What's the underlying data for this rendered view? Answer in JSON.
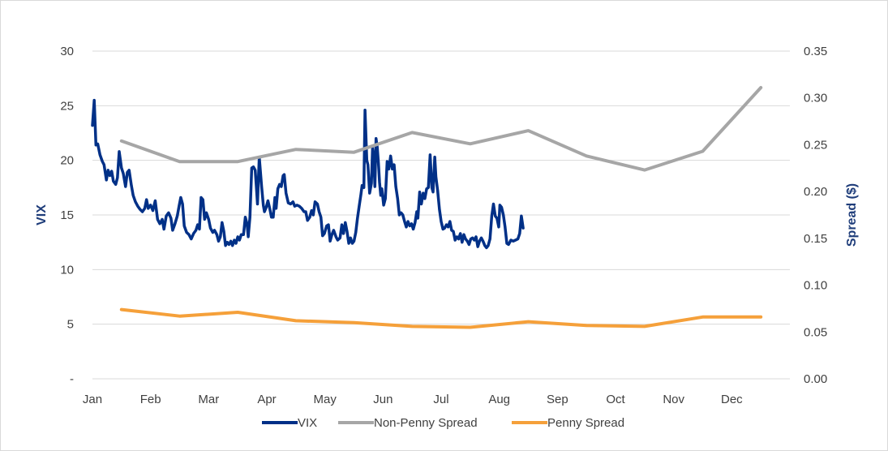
{
  "chart_data": {
    "type": "line",
    "title": "",
    "months": [
      "Jan",
      "Feb",
      "Mar",
      "Apr",
      "May",
      "Jun",
      "Jul",
      "Aug",
      "Sep",
      "Oct",
      "Nov",
      "Dec"
    ],
    "ylabel_left": "VIX",
    "ylabel_right": "Spread ($)",
    "left_axis": {
      "min": 0,
      "max": 30,
      "ticks": [
        0,
        5,
        10,
        15,
        20,
        25,
        30
      ],
      "tick_labels": [
        "-",
        "5",
        "10",
        "15",
        "20",
        "25",
        "30"
      ]
    },
    "right_axis": {
      "min": 0,
      "max": 0.35,
      "ticks": [
        0,
        0.05,
        0.1,
        0.15,
        0.2,
        0.25,
        0.3,
        0.35
      ],
      "tick_labels": [
        "0.00",
        "0.05",
        "0.10",
        "0.15",
        "0.20",
        "0.25",
        "0.30",
        "0.35"
      ]
    },
    "grid": "horizontal",
    "legend_position": "bottom",
    "series": [
      {
        "name": "VIX",
        "axis": "left",
        "color": "#003087",
        "points": [
          [
            0.0,
            23.2
          ],
          [
            0.03,
            25.5
          ],
          [
            0.06,
            21.4
          ],
          [
            0.09,
            21.5
          ],
          [
            0.13,
            20.5
          ],
          [
            0.17,
            19.9
          ],
          [
            0.2,
            19.6
          ],
          [
            0.24,
            18.2
          ],
          [
            0.27,
            19.1
          ],
          [
            0.3,
            18.6
          ],
          [
            0.33,
            19.0
          ],
          [
            0.36,
            18.1
          ],
          [
            0.4,
            17.8
          ],
          [
            0.43,
            18.4
          ],
          [
            0.46,
            20.8
          ],
          [
            0.5,
            19.3
          ],
          [
            0.53,
            18.8
          ],
          [
            0.57,
            17.6
          ],
          [
            0.6,
            18.9
          ],
          [
            0.63,
            19.1
          ],
          [
            0.67,
            17.7
          ],
          [
            0.7,
            16.8
          ],
          [
            0.74,
            16.2
          ],
          [
            0.78,
            15.8
          ],
          [
            0.82,
            15.5
          ],
          [
            0.86,
            15.3
          ],
          [
            0.9,
            15.6
          ],
          [
            0.93,
            16.4
          ],
          [
            0.96,
            15.6
          ],
          [
            1.0,
            15.9
          ],
          [
            1.04,
            15.4
          ],
          [
            1.08,
            16.3
          ],
          [
            1.12,
            14.6
          ],
          [
            1.16,
            14.2
          ],
          [
            1.2,
            14.6
          ],
          [
            1.23,
            13.7
          ],
          [
            1.27,
            14.9
          ],
          [
            1.31,
            15.2
          ],
          [
            1.35,
            14.7
          ],
          [
            1.38,
            13.6
          ],
          [
            1.42,
            14.2
          ],
          [
            1.46,
            14.9
          ],
          [
            1.49,
            15.8
          ],
          [
            1.52,
            16.6
          ],
          [
            1.55,
            16.0
          ],
          [
            1.58,
            14.0
          ],
          [
            1.62,
            13.4
          ],
          [
            1.66,
            13.2
          ],
          [
            1.7,
            12.8
          ],
          [
            1.74,
            13.3
          ],
          [
            1.78,
            13.6
          ],
          [
            1.81,
            14.1
          ],
          [
            1.84,
            13.7
          ],
          [
            1.87,
            16.6
          ],
          [
            1.9,
            16.4
          ],
          [
            1.93,
            14.6
          ],
          [
            1.96,
            15.2
          ],
          [
            2.0,
            14.6
          ],
          [
            2.03,
            13.8
          ],
          [
            2.07,
            13.4
          ],
          [
            2.1,
            13.6
          ],
          [
            2.14,
            13.2
          ],
          [
            2.17,
            12.6
          ],
          [
            2.2,
            13.0
          ],
          [
            2.23,
            14.3
          ],
          [
            2.26,
            13.5
          ],
          [
            2.29,
            12.2
          ],
          [
            2.32,
            12.5
          ],
          [
            2.35,
            12.3
          ],
          [
            2.38,
            12.6
          ],
          [
            2.41,
            12.2
          ],
          [
            2.44,
            12.7
          ],
          [
            2.47,
            12.4
          ],
          [
            2.5,
            13.0
          ],
          [
            2.53,
            12.7
          ],
          [
            2.56,
            13.2
          ],
          [
            2.6,
            13.2
          ],
          [
            2.63,
            14.8
          ],
          [
            2.66,
            14.2
          ],
          [
            2.68,
            13.0
          ],
          [
            2.71,
            14.8
          ],
          [
            2.74,
            19.3
          ],
          [
            2.77,
            19.4
          ],
          [
            2.8,
            19.1
          ],
          [
            2.82,
            17.6
          ],
          [
            2.84,
            16.0
          ],
          [
            2.87,
            20.3
          ],
          [
            2.89,
            19.0
          ],
          [
            2.91,
            17.6
          ],
          [
            2.94,
            15.9
          ],
          [
            2.96,
            15.3
          ],
          [
            2.99,
            15.7
          ],
          [
            3.02,
            16.3
          ],
          [
            3.05,
            15.6
          ],
          [
            3.08,
            14.8
          ],
          [
            3.11,
            14.8
          ],
          [
            3.14,
            16.6
          ],
          [
            3.16,
            15.6
          ],
          [
            3.19,
            17.4
          ],
          [
            3.22,
            17.8
          ],
          [
            3.25,
            17.6
          ],
          [
            3.28,
            18.6
          ],
          [
            3.3,
            18.7
          ],
          [
            3.33,
            17.0
          ],
          [
            3.37,
            16.1
          ],
          [
            3.41,
            16.0
          ],
          [
            3.45,
            16.2
          ],
          [
            3.48,
            15.8
          ],
          [
            3.52,
            15.9
          ],
          [
            3.56,
            15.8
          ],
          [
            3.6,
            15.6
          ],
          [
            3.64,
            15.3
          ],
          [
            3.67,
            15.3
          ],
          [
            3.7,
            14.5
          ],
          [
            3.74,
            14.8
          ],
          [
            3.77,
            15.4
          ],
          [
            3.8,
            15.0
          ],
          [
            3.83,
            16.2
          ],
          [
            3.87,
            16.0
          ],
          [
            3.9,
            15.3
          ],
          [
            3.93,
            14.8
          ],
          [
            3.96,
            13.1
          ],
          [
            3.99,
            13.3
          ],
          [
            4.03,
            14.0
          ],
          [
            4.06,
            14.1
          ],
          [
            4.09,
            12.6
          ],
          [
            4.12,
            13.2
          ],
          [
            4.15,
            13.6
          ],
          [
            4.19,
            13.0
          ],
          [
            4.22,
            12.7
          ],
          [
            4.26,
            12.9
          ],
          [
            4.29,
            14.1
          ],
          [
            4.32,
            13.3
          ],
          [
            4.35,
            14.3
          ],
          [
            4.38,
            13.5
          ],
          [
            4.41,
            12.4
          ],
          [
            4.44,
            12.9
          ],
          [
            4.47,
            12.4
          ],
          [
            4.5,
            12.6
          ],
          [
            4.53,
            13.4
          ],
          [
            4.56,
            14.7
          ],
          [
            4.59,
            15.8
          ],
          [
            4.62,
            16.9
          ],
          [
            4.64,
            17.7
          ],
          [
            4.67,
            17.5
          ],
          [
            4.69,
            24.6
          ],
          [
            4.72,
            20.0
          ],
          [
            4.74,
            19.6
          ],
          [
            4.77,
            17.0
          ],
          [
            4.8,
            17.9
          ],
          [
            4.82,
            21.1
          ],
          [
            4.84,
            20.2
          ],
          [
            4.86,
            17.6
          ],
          [
            4.88,
            22.0
          ],
          [
            4.9,
            21.2
          ],
          [
            4.92,
            19.8
          ],
          [
            4.94,
            18.0
          ],
          [
            4.96,
            16.8
          ],
          [
            4.98,
            17.4
          ],
          [
            5.01,
            15.9
          ],
          [
            5.04,
            16.5
          ],
          [
            5.07,
            19.9
          ],
          [
            5.1,
            19.2
          ],
          [
            5.13,
            20.4
          ],
          [
            5.16,
            19.2
          ],
          [
            5.19,
            19.6
          ],
          [
            5.22,
            17.6
          ],
          [
            5.25,
            16.5
          ],
          [
            5.28,
            15.0
          ],
          [
            5.31,
            15.2
          ],
          [
            5.34,
            15.0
          ],
          [
            5.37,
            14.4
          ],
          [
            5.4,
            13.9
          ],
          [
            5.43,
            14.4
          ],
          [
            5.46,
            14.0
          ],
          [
            5.49,
            14.2
          ],
          [
            5.52,
            13.7
          ],
          [
            5.55,
            14.3
          ],
          [
            5.58,
            15.3
          ],
          [
            5.6,
            14.7
          ],
          [
            5.63,
            17.1
          ],
          [
            5.66,
            16.0
          ],
          [
            5.69,
            17.0
          ],
          [
            5.72,
            16.5
          ],
          [
            5.75,
            17.4
          ],
          [
            5.78,
            17.5
          ],
          [
            5.81,
            20.5
          ],
          [
            5.84,
            17.5
          ],
          [
            5.86,
            17.1
          ],
          [
            5.89,
            20.3
          ],
          [
            5.91,
            18.5
          ],
          [
            5.94,
            17.2
          ],
          [
            5.97,
            15.5
          ],
          [
            6.0,
            14.4
          ],
          [
            6.03,
            13.7
          ],
          [
            6.06,
            13.8
          ],
          [
            6.09,
            14.1
          ],
          [
            6.12,
            13.9
          ],
          [
            6.15,
            14.4
          ],
          [
            6.18,
            13.6
          ],
          [
            6.21,
            13.5
          ],
          [
            6.24,
            12.7
          ],
          [
            6.27,
            13.0
          ],
          [
            6.3,
            12.8
          ],
          [
            6.33,
            13.3
          ],
          [
            6.36,
            12.5
          ],
          [
            6.39,
            13.2
          ],
          [
            6.42,
            12.8
          ],
          [
            6.45,
            12.6
          ],
          [
            6.48,
            12.3
          ],
          [
            6.51,
            12.8
          ],
          [
            6.54,
            12.9
          ],
          [
            6.57,
            12.7
          ],
          [
            6.6,
            13.0
          ],
          [
            6.63,
            12.1
          ],
          [
            6.66,
            12.6
          ],
          [
            6.69,
            12.9
          ],
          [
            6.72,
            12.6
          ],
          [
            6.75,
            12.2
          ],
          [
            6.78,
            12.0
          ],
          [
            6.81,
            12.2
          ],
          [
            6.84,
            12.8
          ],
          [
            6.87,
            14.9
          ],
          [
            6.9,
            16.0
          ],
          [
            6.93,
            14.9
          ],
          [
            6.96,
            14.7
          ],
          [
            6.99,
            13.9
          ],
          [
            7.01,
            15.9
          ],
          [
            7.04,
            15.7
          ],
          [
            7.07,
            15.0
          ],
          [
            7.1,
            13.9
          ],
          [
            7.13,
            12.4
          ],
          [
            7.16,
            12.3
          ],
          [
            7.2,
            12.7
          ],
          [
            7.24,
            12.6
          ],
          [
            7.28,
            12.7
          ],
          [
            7.32,
            12.8
          ],
          [
            7.35,
            13.3
          ],
          [
            7.38,
            14.9
          ],
          [
            7.41,
            13.8
          ]
        ]
      },
      {
        "name": "Non-Penny Spread",
        "axis": "right",
        "color": "#a6a6a6",
        "points": [
          [
            0.5,
            0.254
          ],
          [
            1.5,
            0.232
          ],
          [
            2.5,
            0.232
          ],
          [
            3.5,
            0.245
          ],
          [
            4.5,
            0.242
          ],
          [
            5.5,
            0.263
          ],
          [
            6.5,
            0.251
          ],
          [
            7.5,
            0.265
          ],
          [
            8.5,
            0.238
          ],
          [
            9.5,
            0.223
          ],
          [
            10.5,
            0.243
          ],
          [
            11.5,
            0.311
          ]
        ]
      },
      {
        "name": "Penny Spread",
        "axis": "right",
        "color": "#f5a03a",
        "points": [
          [
            0.5,
            0.074
          ],
          [
            1.5,
            0.067
          ],
          [
            2.5,
            0.071
          ],
          [
            3.5,
            0.062
          ],
          [
            4.5,
            0.06
          ],
          [
            5.5,
            0.056
          ],
          [
            6.5,
            0.055
          ],
          [
            7.5,
            0.061
          ],
          [
            8.5,
            0.057
          ],
          [
            9.5,
            0.056
          ],
          [
            10.5,
            0.066
          ],
          [
            11.5,
            0.066
          ]
        ]
      }
    ]
  }
}
